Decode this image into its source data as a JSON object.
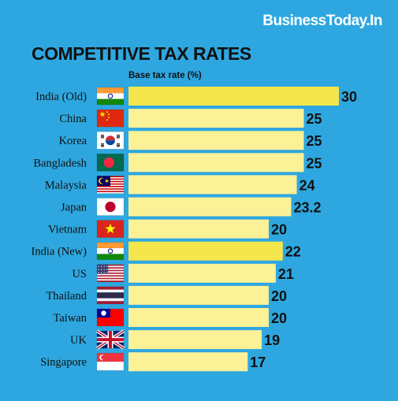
{
  "brand": "BusinessToday.In",
  "chart_data": {
    "type": "bar",
    "orientation": "horizontal",
    "title": "COMPETITIVE TAX RATES",
    "ylabel": "Base tax rate (%)",
    "xlim": [
      0,
      30
    ],
    "grid": false,
    "categories": [
      "India (Old)",
      "China",
      "Korea",
      "Bangladesh",
      "Malaysia",
      "Japan",
      "Vietnam",
      "India (New)",
      "US",
      "Thailand",
      "Taiwan",
      "UK",
      "Singapore"
    ],
    "values": [
      30,
      25,
      25,
      25,
      24,
      23.2,
      20,
      22,
      21,
      20,
      20,
      19,
      17
    ],
    "value_labels": [
      "30",
      "25",
      "25",
      "25",
      "24",
      "23.2",
      "20",
      "22",
      "21",
      "20",
      "20",
      "19",
      "17"
    ],
    "flags": [
      "india-flag-icon",
      "china-flag-icon",
      "korea-flag-icon",
      "bangladesh-flag-icon",
      "malaysia-flag-icon",
      "japan-flag-icon",
      "vietnam-flag-icon",
      "india-flag-icon",
      "us-flag-icon",
      "thailand-flag-icon",
      "taiwan-flag-icon",
      "uk-flag-icon",
      "singapore-flag-icon"
    ],
    "highlight_categories": [
      "India (Old)",
      "India (New)"
    ],
    "colors": {
      "background": "#2ea7e0",
      "bar": "#fbf197",
      "bar_highlight": "#f6e64d"
    }
  }
}
